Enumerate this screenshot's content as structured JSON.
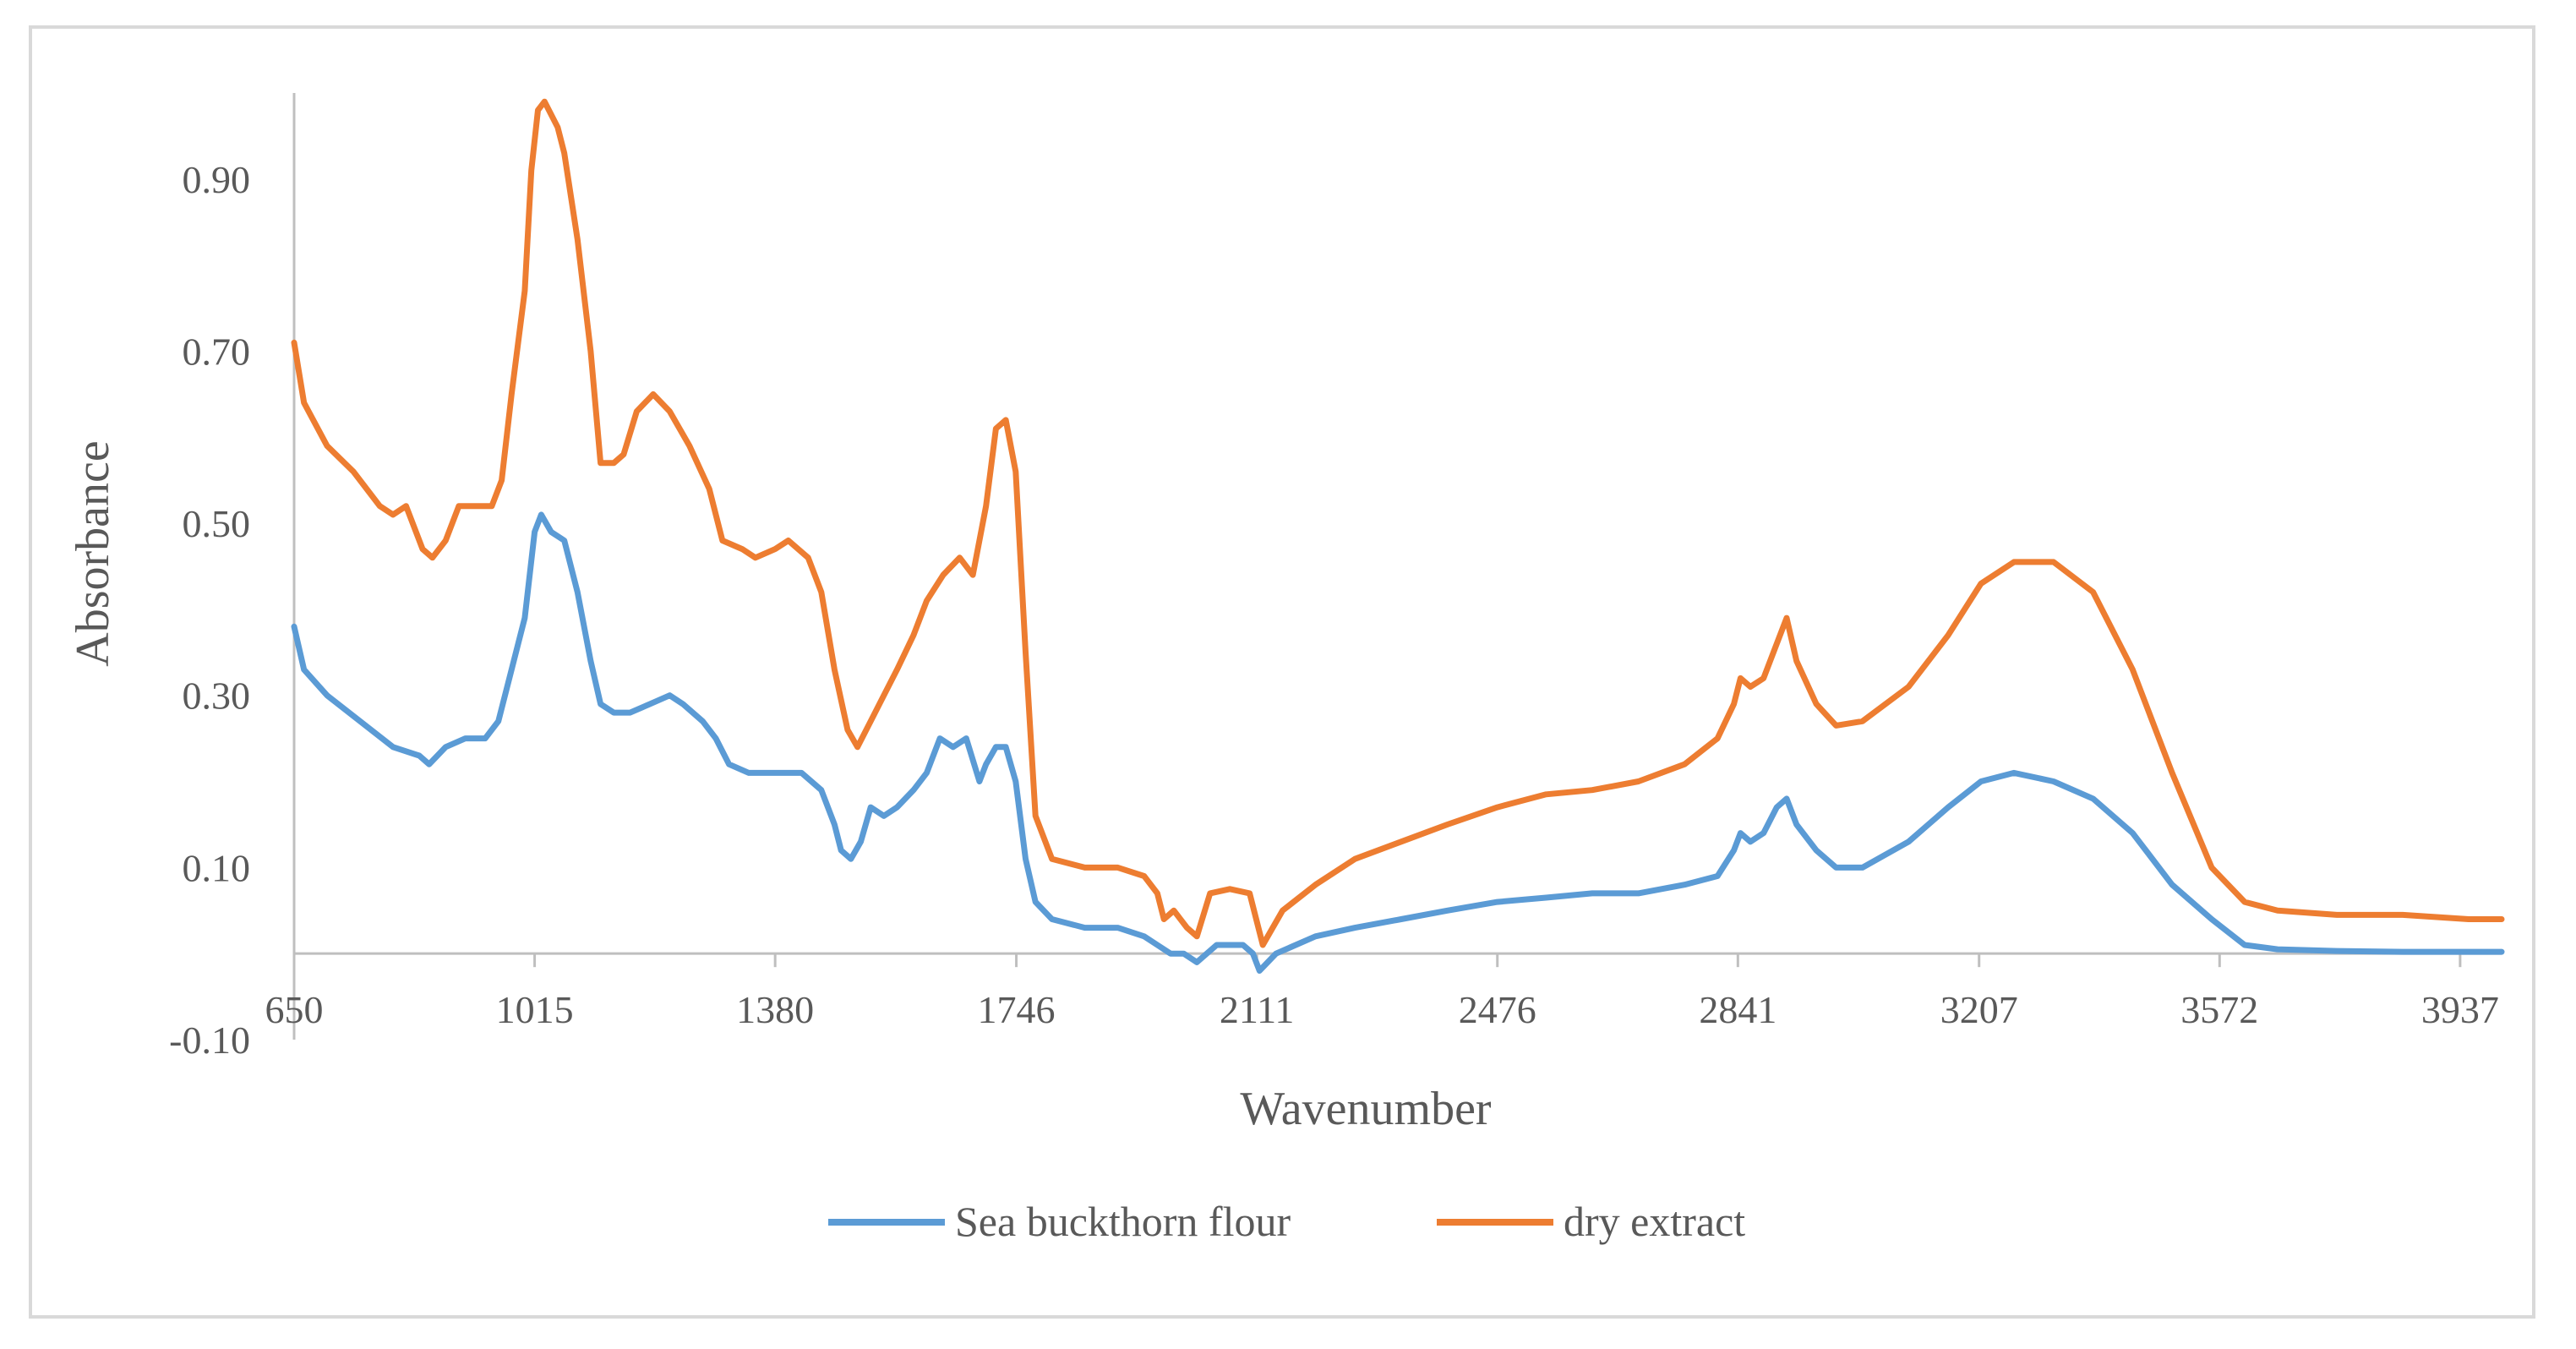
{
  "chart_data": {
    "type": "line",
    "title": "",
    "xlabel": "Wavenumber",
    "ylabel": "Absorbance",
    "xlim": [
      650,
      4000
    ],
    "ylim": [
      -0.1,
      1.0
    ],
    "x_tick_labels": [
      "650",
      "1015",
      "1380",
      "1746",
      "2111",
      "2476",
      "2841",
      "3207",
      "3572",
      "3937"
    ],
    "x_tick_values": [
      650,
      1015,
      1380,
      1746,
      2111,
      2476,
      2841,
      3207,
      3572,
      3937
    ],
    "y_tick_labels": [
      "-0.10",
      "0.10",
      "0.30",
      "0.50",
      "0.70",
      "0.90"
    ],
    "y_tick_values": [
      -0.1,
      0.1,
      0.3,
      0.5,
      0.7,
      0.9
    ],
    "x_axis_crosses_y": 0.0,
    "grid": false,
    "legend_position": "bottom",
    "series": [
      {
        "name": "Sea buckthorn flour",
        "color": "#5b9bd5",
        "points": [
          [
            650,
            0.38
          ],
          [
            665,
            0.33
          ],
          [
            700,
            0.3
          ],
          [
            750,
            0.27
          ],
          [
            800,
            0.24
          ],
          [
            840,
            0.23
          ],
          [
            855,
            0.22
          ],
          [
            880,
            0.24
          ],
          [
            910,
            0.25
          ],
          [
            940,
            0.25
          ],
          [
            960,
            0.27
          ],
          [
            980,
            0.33
          ],
          [
            1000,
            0.39
          ],
          [
            1015,
            0.49
          ],
          [
            1025,
            0.51
          ],
          [
            1040,
            0.49
          ],
          [
            1060,
            0.48
          ],
          [
            1080,
            0.42
          ],
          [
            1100,
            0.34
          ],
          [
            1115,
            0.29
          ],
          [
            1135,
            0.28
          ],
          [
            1160,
            0.28
          ],
          [
            1190,
            0.29
          ],
          [
            1220,
            0.3
          ],
          [
            1240,
            0.29
          ],
          [
            1270,
            0.27
          ],
          [
            1290,
            0.25
          ],
          [
            1310,
            0.22
          ],
          [
            1340,
            0.21
          ],
          [
            1360,
            0.21
          ],
          [
            1380,
            0.21
          ],
          [
            1400,
            0.21
          ],
          [
            1420,
            0.21
          ],
          [
            1450,
            0.19
          ],
          [
            1470,
            0.15
          ],
          [
            1480,
            0.12
          ],
          [
            1495,
            0.11
          ],
          [
            1510,
            0.13
          ],
          [
            1525,
            0.17
          ],
          [
            1545,
            0.16
          ],
          [
            1565,
            0.17
          ],
          [
            1590,
            0.19
          ],
          [
            1610,
            0.21
          ],
          [
            1630,
            0.25
          ],
          [
            1650,
            0.24
          ],
          [
            1670,
            0.25
          ],
          [
            1690,
            0.2
          ],
          [
            1700,
            0.22
          ],
          [
            1715,
            0.24
          ],
          [
            1730,
            0.24
          ],
          [
            1745,
            0.2
          ],
          [
            1760,
            0.11
          ],
          [
            1775,
            0.06
          ],
          [
            1800,
            0.04
          ],
          [
            1850,
            0.03
          ],
          [
            1900,
            0.03
          ],
          [
            1940,
            0.02
          ],
          [
            1960,
            0.01
          ],
          [
            1980,
            0.0
          ],
          [
            2000,
            0.0
          ],
          [
            2020,
            -0.01
          ],
          [
            2050,
            0.01
          ],
          [
            2090,
            0.01
          ],
          [
            2105,
            0.0
          ],
          [
            2115,
            -0.02
          ],
          [
            2140,
            0.0
          ],
          [
            2200,
            0.02
          ],
          [
            2260,
            0.03
          ],
          [
            2330,
            0.04
          ],
          [
            2400,
            0.05
          ],
          [
            2476,
            0.06
          ],
          [
            2550,
            0.065
          ],
          [
            2620,
            0.07
          ],
          [
            2690,
            0.07
          ],
          [
            2760,
            0.08
          ],
          [
            2810,
            0.09
          ],
          [
            2835,
            0.12
          ],
          [
            2845,
            0.14
          ],
          [
            2860,
            0.13
          ],
          [
            2880,
            0.14
          ],
          [
            2900,
            0.17
          ],
          [
            2915,
            0.18
          ],
          [
            2930,
            0.15
          ],
          [
            2960,
            0.12
          ],
          [
            2990,
            0.1
          ],
          [
            3030,
            0.1
          ],
          [
            3100,
            0.13
          ],
          [
            3160,
            0.17
          ],
          [
            3210,
            0.2
          ],
          [
            3260,
            0.21
          ],
          [
            3320,
            0.2
          ],
          [
            3380,
            0.18
          ],
          [
            3440,
            0.14
          ],
          [
            3500,
            0.08
          ],
          [
            3560,
            0.04
          ],
          [
            3610,
            0.01
          ],
          [
            3660,
            0.005
          ],
          [
            3750,
            0.003
          ],
          [
            3850,
            0.002
          ],
          [
            3950,
            0.002
          ],
          [
            4000,
            0.002
          ]
        ]
      },
      {
        "name": "dry extract",
        "color": "#ed7d31",
        "points": [
          [
            650,
            0.71
          ],
          [
            665,
            0.64
          ],
          [
            700,
            0.59
          ],
          [
            740,
            0.56
          ],
          [
            780,
            0.52
          ],
          [
            800,
            0.51
          ],
          [
            820,
            0.52
          ],
          [
            845,
            0.47
          ],
          [
            860,
            0.46
          ],
          [
            880,
            0.48
          ],
          [
            900,
            0.52
          ],
          [
            920,
            0.52
          ],
          [
            950,
            0.52
          ],
          [
            965,
            0.55
          ],
          [
            980,
            0.65
          ],
          [
            1000,
            0.77
          ],
          [
            1010,
            0.91
          ],
          [
            1020,
            0.98
          ],
          [
            1030,
            0.99
          ],
          [
            1050,
            0.96
          ],
          [
            1060,
            0.93
          ],
          [
            1080,
            0.83
          ],
          [
            1100,
            0.7
          ],
          [
            1115,
            0.57
          ],
          [
            1135,
            0.57
          ],
          [
            1150,
            0.58
          ],
          [
            1170,
            0.63
          ],
          [
            1195,
            0.65
          ],
          [
            1220,
            0.63
          ],
          [
            1250,
            0.59
          ],
          [
            1280,
            0.54
          ],
          [
            1300,
            0.48
          ],
          [
            1330,
            0.47
          ],
          [
            1350,
            0.46
          ],
          [
            1380,
            0.47
          ],
          [
            1400,
            0.48
          ],
          [
            1430,
            0.46
          ],
          [
            1450,
            0.42
          ],
          [
            1470,
            0.33
          ],
          [
            1490,
            0.26
          ],
          [
            1505,
            0.24
          ],
          [
            1525,
            0.27
          ],
          [
            1545,
            0.3
          ],
          [
            1565,
            0.33
          ],
          [
            1590,
            0.37
          ],
          [
            1610,
            0.41
          ],
          [
            1635,
            0.44
          ],
          [
            1660,
            0.46
          ],
          [
            1680,
            0.44
          ],
          [
            1700,
            0.52
          ],
          [
            1715,
            0.61
          ],
          [
            1730,
            0.62
          ],
          [
            1745,
            0.56
          ],
          [
            1760,
            0.35
          ],
          [
            1775,
            0.16
          ],
          [
            1800,
            0.11
          ],
          [
            1850,
            0.1
          ],
          [
            1900,
            0.1
          ],
          [
            1940,
            0.09
          ],
          [
            1960,
            0.07
          ],
          [
            1970,
            0.04
          ],
          [
            1985,
            0.05
          ],
          [
            2005,
            0.03
          ],
          [
            2020,
            0.02
          ],
          [
            2040,
            0.07
          ],
          [
            2070,
            0.075
          ],
          [
            2100,
            0.07
          ],
          [
            2110,
            0.04
          ],
          [
            2120,
            0.01
          ],
          [
            2150,
            0.05
          ],
          [
            2200,
            0.08
          ],
          [
            2260,
            0.11
          ],
          [
            2330,
            0.13
          ],
          [
            2400,
            0.15
          ],
          [
            2476,
            0.17
          ],
          [
            2550,
            0.185
          ],
          [
            2620,
            0.19
          ],
          [
            2690,
            0.2
          ],
          [
            2760,
            0.22
          ],
          [
            2810,
            0.25
          ],
          [
            2835,
            0.29
          ],
          [
            2845,
            0.32
          ],
          [
            2860,
            0.31
          ],
          [
            2880,
            0.32
          ],
          [
            2900,
            0.36
          ],
          [
            2915,
            0.39
          ],
          [
            2930,
            0.34
          ],
          [
            2960,
            0.29
          ],
          [
            2990,
            0.265
          ],
          [
            3030,
            0.27
          ],
          [
            3100,
            0.31
          ],
          [
            3160,
            0.37
          ],
          [
            3210,
            0.43
          ],
          [
            3260,
            0.455
          ],
          [
            3320,
            0.455
          ],
          [
            3380,
            0.42
          ],
          [
            3440,
            0.33
          ],
          [
            3500,
            0.21
          ],
          [
            3560,
            0.1
          ],
          [
            3610,
            0.06
          ],
          [
            3660,
            0.05
          ],
          [
            3750,
            0.045
          ],
          [
            3850,
            0.045
          ],
          [
            3950,
            0.04
          ],
          [
            4000,
            0.04
          ]
        ]
      }
    ]
  }
}
